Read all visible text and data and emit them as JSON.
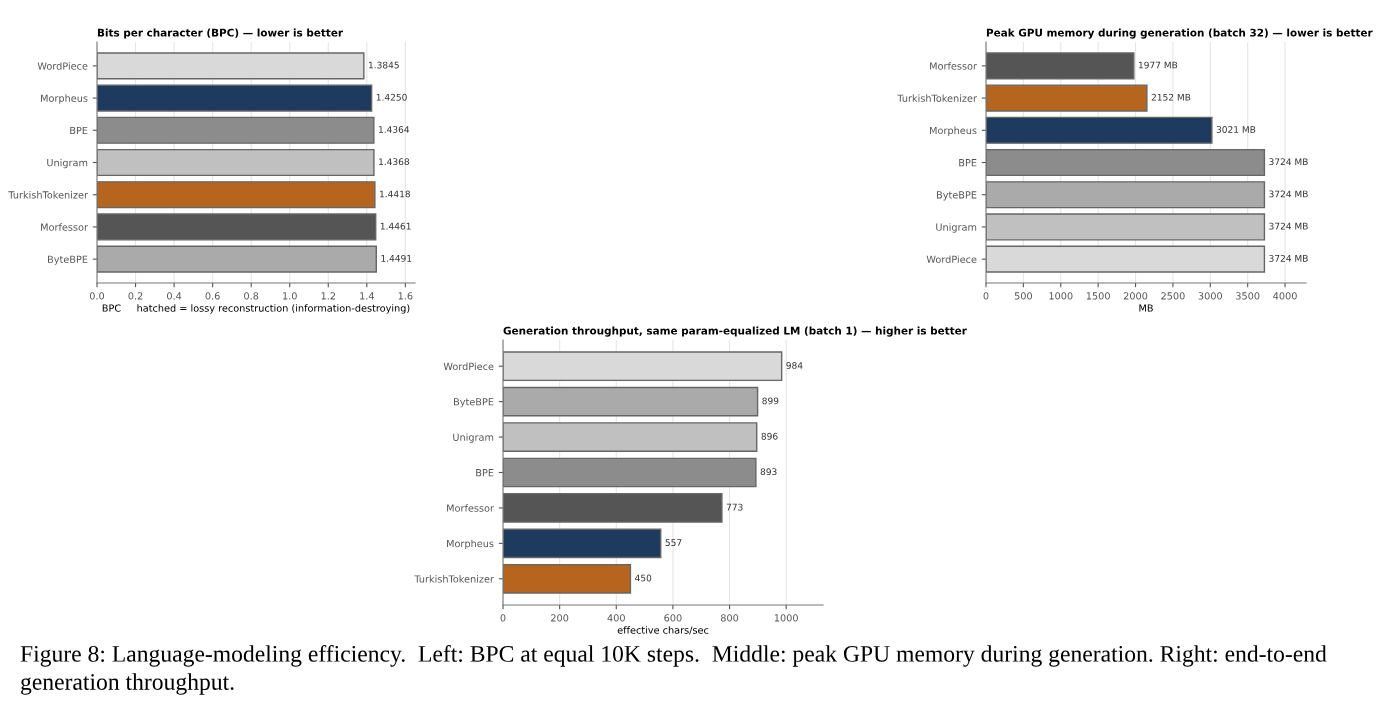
{
  "chart_data": [
    {
      "type": "bar",
      "orientation": "horizontal",
      "title": "Bits per character (BPC) — lower is better",
      "xlabel": "BPC     hatched = lossy reconstruction (information-destroying)",
      "categories": [
        "WordPiece",
        "Morpheus",
        "BPE",
        "Unigram",
        "TurkishTokenizer",
        "Morfessor",
        "ByteBPE"
      ],
      "values": [
        1.3845,
        1.425,
        1.4364,
        1.4368,
        1.4418,
        1.4461,
        1.4491
      ],
      "colors": [
        "#d9d9d9",
        "#1f3a5f",
        "#8c8c8c",
        "#c0c0c0",
        "#b5651d",
        "#555555",
        "#aaaaaa"
      ],
      "value_labels": [
        "1.3845",
        "1.4250",
        "1.4364",
        "1.4368",
        "1.4418",
        "1.4461",
        "1.4491"
      ],
      "xlim": [
        0,
        1.65
      ],
      "xticks": [
        {
          "value": 0,
          "label": "0.0"
        },
        0.2,
        0.4,
        0.6,
        0.8,
        {
          "value": 1,
          "label": "1.0"
        },
        1.2,
        1.4,
        1.6
      ],
      "grid": "x"
    },
    {
      "type": "bar",
      "orientation": "horizontal",
      "title": "Peak GPU memory during generation (batch 32) — lower is better",
      "xlabel": "MB",
      "categories": [
        "Morfessor",
        "TurkishTokenizer",
        "Morpheus",
        "BPE",
        "ByteBPE",
        "Unigram",
        "WordPiece"
      ],
      "values": [
        1977,
        2152,
        3021,
        3724,
        3724,
        3724,
        3724
      ],
      "colors": [
        "#555555",
        "#b5651d",
        "#1f3a5f",
        "#8c8c8c",
        "#aaaaaa",
        "#c0c0c0",
        "#d9d9d9"
      ],
      "value_labels": [
        "1977 MB",
        "2152 MB",
        "3021 MB",
        "3724 MB",
        "3724 MB",
        "3724 MB",
        "3724 MB"
      ],
      "xlim": [
        0,
        4280
      ],
      "xticks": [
        0,
        500,
        1000,
        1500,
        2000,
        2500,
        3000,
        3500,
        4000
      ],
      "grid": "x"
    },
    {
      "type": "bar",
      "orientation": "horizontal",
      "title": "Generation throughput, same param-equalized LM (batch 1) — higher is better",
      "xlabel": "effective chars/sec",
      "categories": [
        "WordPiece",
        "ByteBPE",
        "Unigram",
        "BPE",
        "Morfessor",
        "Morpheus",
        "TurkishTokenizer"
      ],
      "values": [
        984,
        899,
        896,
        893,
        773,
        557,
        450
      ],
      "colors": [
        "#d9d9d9",
        "#aaaaaa",
        "#c0c0c0",
        "#8c8c8c",
        "#555555",
        "#1f3a5f",
        "#b5651d"
      ],
      "data_labels": true,
      "xlim": [
        0,
        1130
      ],
      "xticks": [
        0,
        200,
        400,
        600,
        800,
        1000
      ],
      "grid": "x",
      "annotations": [
        "Figure 8: Language-modeling efficiency.  Left: BPC at equal 10K steps.  Middle: peak GPU memory during generation. Right: end-to-end generation throughput."
      ]
    }
  ]
}
